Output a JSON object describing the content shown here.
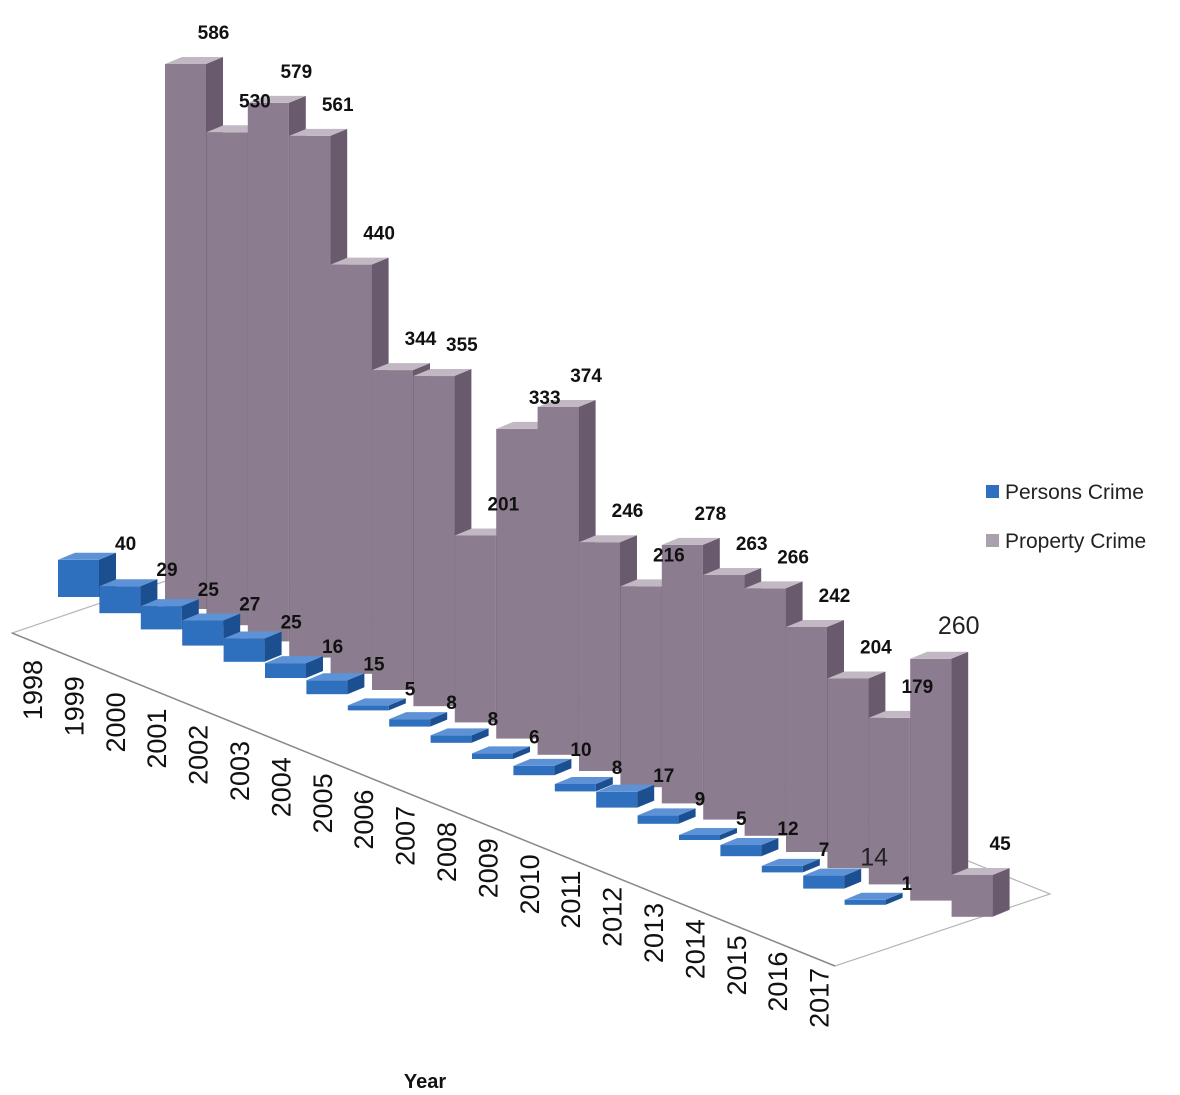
{
  "chart_data": {
    "type": "bar",
    "categories": [
      "1998",
      "1999",
      "2000",
      "2001",
      "2002",
      "2003",
      "2004",
      "2005",
      "2006",
      "2007",
      "2008",
      "2009",
      "2010",
      "2011",
      "2012",
      "2013",
      "2014",
      "2015",
      "2016",
      "2017"
    ],
    "series": [
      {
        "name": "Persons Crime",
        "color": "#2f6fbf",
        "values": [
          40,
          29,
          25,
          27,
          25,
          16,
          15,
          5,
          8,
          8,
          6,
          10,
          8,
          17,
          9,
          5,
          12,
          7,
          14,
          1
        ]
      },
      {
        "name": "Property Crime",
        "color": "#8e7e91",
        "values": [
          586,
          530,
          579,
          561,
          440,
          344,
          355,
          201,
          333,
          374,
          246,
          216,
          278,
          263,
          266,
          242,
          204,
          179,
          260,
          45
        ]
      }
    ],
    "title": "",
    "xlabel": "Year",
    "ylabel": "",
    "legend_position": "right",
    "grid": false
  }
}
